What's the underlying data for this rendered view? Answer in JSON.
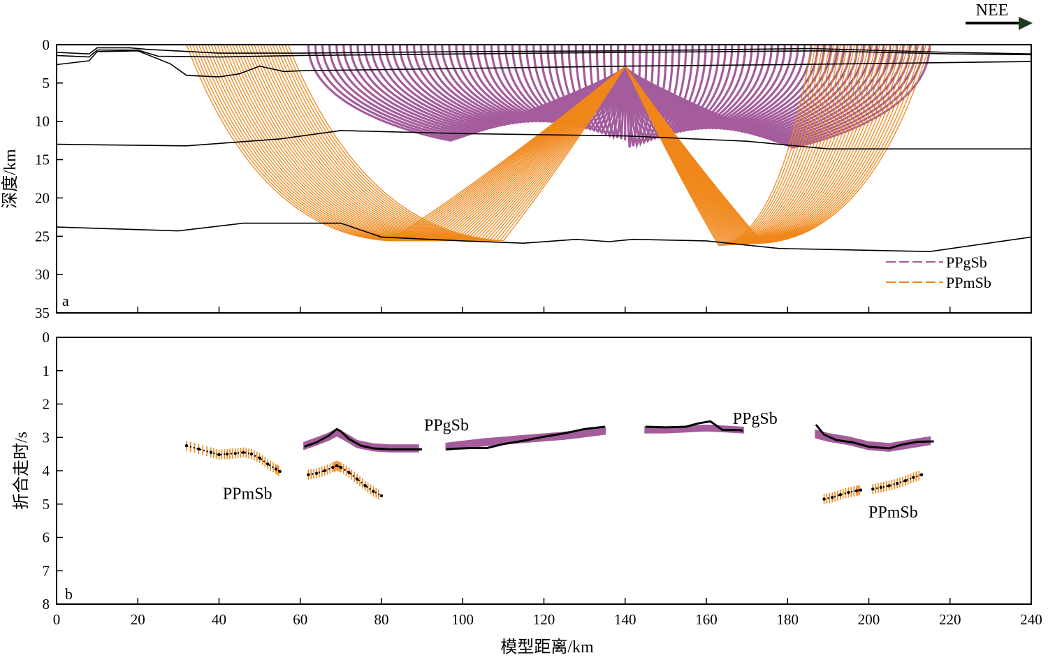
{
  "direction_label": "NEE",
  "colors": {
    "PPgSb": "#a45c9c",
    "PPmSb": "#f0871a",
    "model_line": "#000000"
  },
  "chart_data": [
    {
      "panel": "a",
      "type": "line",
      "title": "",
      "xlabel": "",
      "ylabel": "深度/km",
      "xlim": [
        0,
        240
      ],
      "ylim": [
        35,
        0
      ],
      "x_ticks": [
        0,
        20,
        40,
        60,
        80,
        100,
        120,
        140,
        160,
        180,
        200,
        220,
        240
      ],
      "y_ticks": [
        0,
        5,
        10,
        15,
        20,
        25,
        30,
        35
      ],
      "legend": {
        "position": "bottom-right",
        "entries": [
          "PPgSb",
          "PPmSb"
        ]
      },
      "source_x": 140,
      "source_depth": 2.8,
      "interfaces": [
        {
          "name": "surface",
          "points": [
            [
              0,
              1.0
            ],
            [
              8,
              1.2
            ],
            [
              10,
              0.4
            ],
            [
              18,
              0.4
            ],
            [
              22,
              0.6
            ],
            [
              40,
              1.1
            ],
            [
              60,
              1.1
            ],
            [
              100,
              0.9
            ],
            [
              140,
              0.8
            ],
            [
              186,
              0.5
            ],
            [
              220,
              1.0
            ],
            [
              240,
              1.2
            ]
          ]
        },
        {
          "name": "basin-top",
          "points": [
            [
              0,
              1.4
            ],
            [
              8,
              1.6
            ],
            [
              10,
              0.7
            ],
            [
              20,
              0.7
            ],
            [
              25,
              1.5
            ],
            [
              40,
              1.6
            ],
            [
              60,
              1.4
            ],
            [
              100,
              1.2
            ],
            [
              140,
              1.0
            ],
            [
              188,
              0.8
            ],
            [
              220,
              1.2
            ],
            [
              240,
              1.3
            ]
          ]
        },
        {
          "name": "basin-base",
          "points": [
            [
              0,
              2.6
            ],
            [
              8,
              2.1
            ],
            [
              10,
              0.9
            ],
            [
              20,
              0.8
            ],
            [
              28,
              2.5
            ],
            [
              32,
              4.0
            ],
            [
              40,
              4.2
            ],
            [
              45,
              3.8
            ],
            [
              50,
              2.8
            ],
            [
              56,
              3.5
            ],
            [
              60,
              3.4
            ],
            [
              100,
              3.1
            ],
            [
              140,
              2.8
            ],
            [
              180,
              2.6
            ],
            [
              240,
              2.2
            ]
          ]
        },
        {
          "name": "upper-crust",
          "points": [
            [
              0,
              13.0
            ],
            [
              32,
              13.2
            ],
            [
              55,
              12.3
            ],
            [
              70,
              11.2
            ],
            [
              100,
              11.6
            ],
            [
              140,
              11.9
            ],
            [
              170,
              12.6
            ],
            [
              190,
              13.6
            ],
            [
              240,
              13.6
            ]
          ]
        },
        {
          "name": "moho",
          "points": [
            [
              0,
              23.8
            ],
            [
              30,
              24.3
            ],
            [
              46,
              23.3
            ],
            [
              70,
              23.3
            ],
            [
              80,
              25.1
            ],
            [
              100,
              25.6
            ],
            [
              115,
              25.9
            ],
            [
              128,
              25.4
            ],
            [
              136,
              25.7
            ],
            [
              142,
              25.4
            ],
            [
              160,
              25.6
            ],
            [
              178,
              26.6
            ],
            [
              215,
              27.0
            ],
            [
              240,
              25.1
            ]
          ]
        }
      ],
      "ray_families": [
        {
          "phase": "PPmSb",
          "reflect_x_range": [
            82,
            110
          ],
          "surface_x_range": [
            32,
            57
          ],
          "reflect_depth": 25.6
        },
        {
          "phase": "PPmSb",
          "reflect_x_range": [
            163,
            174
          ],
          "surface_x_range": [
            186,
            215
          ],
          "reflect_depth": 26.2
        },
        {
          "phase": "PPgSb",
          "reflect_x_range": [
            62,
            142
          ],
          "surface_x_range": [
            62,
            142
          ],
          "reflect_depth": 12.5
        },
        {
          "phase": "PPgSb",
          "reflect_x_range": [
            142,
            215
          ],
          "surface_x_range": [
            142,
            215
          ],
          "reflect_depth": 13.4
        }
      ]
    },
    {
      "panel": "b",
      "type": "scatter",
      "title": "",
      "xlabel": "模型距离/km",
      "ylabel": "折合走时/s",
      "xlim": [
        0,
        240
      ],
      "ylim": [
        8,
        0
      ],
      "x_ticks": [
        0,
        20,
        40,
        60,
        80,
        100,
        120,
        140,
        160,
        180,
        200,
        220,
        240
      ],
      "y_ticks": [
        0,
        1,
        2,
        3,
        4,
        5,
        6,
        7,
        8
      ],
      "annotations": [
        {
          "text": "PPmSb",
          "x": 47,
          "y": 4.85
        },
        {
          "text": "PPgSb",
          "x": 96,
          "y": 2.8
        },
        {
          "text": "PPgSb",
          "x": 172,
          "y": 2.6
        },
        {
          "text": "PPmSb",
          "x": 206,
          "y": 5.4
        }
      ],
      "series": [
        {
          "phase": "PPmSb",
          "style": "picks-with-error",
          "x": [
            32,
            35,
            38,
            40,
            42,
            44,
            46,
            48,
            50,
            52,
            54,
            55
          ],
          "y": [
            3.25,
            3.35,
            3.45,
            3.52,
            3.5,
            3.48,
            3.45,
            3.5,
            3.62,
            3.8,
            3.95,
            4.02
          ],
          "err": 0.15
        },
        {
          "phase": "PPmSb",
          "style": "picks-with-error",
          "x": [
            62,
            64,
            66,
            68,
            69,
            70,
            72,
            74,
            76,
            78,
            80
          ],
          "y": [
            4.12,
            4.08,
            4.0,
            3.9,
            3.85,
            3.9,
            4.05,
            4.25,
            4.45,
            4.62,
            4.75
          ],
          "err": 0.15
        },
        {
          "phase": "PPmSb",
          "style": "picks-with-error",
          "x": [
            189,
            191,
            193,
            195,
            197,
            198
          ],
          "y": [
            4.85,
            4.8,
            4.72,
            4.65,
            4.6,
            4.58
          ],
          "err": 0.15
        },
        {
          "phase": "PPmSb",
          "style": "picks-with-error",
          "x": [
            201,
            203,
            205,
            207,
            209,
            211,
            213
          ],
          "y": [
            4.55,
            4.5,
            4.45,
            4.38,
            4.3,
            4.2,
            4.12
          ],
          "err": 0.15
        },
        {
          "phase": "PPgSb",
          "style": "observed-band",
          "x": [
            61,
            64,
            67,
            69,
            71,
            74,
            78,
            82,
            86,
            89
          ],
          "y": [
            3.25,
            3.12,
            2.98,
            2.85,
            2.98,
            3.2,
            3.3,
            3.33,
            3.33,
            3.33
          ],
          "err": 0.09
        },
        {
          "phase": "PPgSb",
          "style": "observed-band",
          "x": [
            96,
            100,
            105,
            110,
            115,
            120,
            125,
            130,
            135
          ],
          "y": [
            3.28,
            3.22,
            3.15,
            3.1,
            3.05,
            3.0,
            2.95,
            2.88,
            2.8
          ],
          "err": 0.09
        },
        {
          "phase": "PPgSb",
          "style": "observed-band",
          "x": [
            145,
            150,
            155,
            160,
            165,
            169
          ],
          "y": [
            2.78,
            2.78,
            2.75,
            2.72,
            2.75,
            2.78
          ],
          "err": 0.07
        },
        {
          "phase": "PPgSb",
          "style": "observed-band",
          "x": [
            187,
            190,
            195,
            200,
            205,
            210,
            215
          ],
          "y": [
            2.9,
            3.0,
            3.1,
            3.25,
            3.3,
            3.2,
            3.1
          ],
          "err": 0.1
        },
        {
          "phase": "model",
          "style": "calculated",
          "x": [
            61,
            64,
            67,
            69,
            70,
            72,
            75,
            78,
            82,
            86,
            88
          ],
          "y": [
            3.28,
            3.15,
            2.95,
            2.75,
            2.82,
            3.05,
            3.25,
            3.33,
            3.36,
            3.36,
            3.36
          ]
        },
        {
          "phase": "model",
          "style": "calculated",
          "x": [
            88,
            90
          ],
          "y": [
            3.36,
            3.36
          ]
        },
        {
          "phase": "model",
          "style": "calculated",
          "x": [
            96,
            102,
            106,
            110,
            115,
            120,
            125,
            130,
            135
          ],
          "y": [
            3.35,
            3.32,
            3.32,
            3.2,
            3.1,
            2.98,
            2.88,
            2.75,
            2.68
          ]
        },
        {
          "phase": "model",
          "style": "calculated",
          "x": [
            145,
            150,
            155,
            158,
            161,
            164,
            168,
            169
          ],
          "y": [
            2.68,
            2.7,
            2.68,
            2.58,
            2.52,
            2.78,
            2.78,
            2.8
          ]
        },
        {
          "phase": "model",
          "style": "calculated",
          "x": [
            187,
            189,
            192,
            196,
            200,
            205,
            208,
            212,
            216
          ],
          "y": [
            2.62,
            2.92,
            3.08,
            3.15,
            3.28,
            3.33,
            3.22,
            3.13,
            3.12
          ]
        },
        {
          "phase": "model",
          "style": "calculated-dots",
          "x": [
            32,
            35,
            38,
            40,
            42,
            44,
            46,
            48,
            50,
            52,
            54,
            55
          ],
          "y": [
            3.25,
            3.35,
            3.45,
            3.52,
            3.5,
            3.48,
            3.45,
            3.5,
            3.62,
            3.8,
            3.95,
            4.02
          ]
        },
        {
          "phase": "model",
          "style": "calculated-dots",
          "x": [
            62,
            64,
            66,
            68,
            69,
            70,
            72,
            74,
            76,
            78,
            80
          ],
          "y": [
            4.12,
            4.08,
            4.0,
            3.9,
            3.85,
            3.9,
            4.05,
            4.25,
            4.45,
            4.62,
            4.75
          ]
        },
        {
          "phase": "model",
          "style": "calculated-dots",
          "x": [
            189,
            191,
            193,
            195,
            197,
            198
          ],
          "y": [
            4.85,
            4.8,
            4.72,
            4.65,
            4.6,
            4.58
          ]
        },
        {
          "phase": "model",
          "style": "calculated-dots",
          "x": [
            201,
            203,
            205,
            207,
            209,
            211,
            213
          ],
          "y": [
            4.55,
            4.5,
            4.45,
            4.38,
            4.3,
            4.2,
            4.12
          ]
        }
      ]
    }
  ],
  "panel_labels": {
    "a": "a",
    "b": "b"
  }
}
